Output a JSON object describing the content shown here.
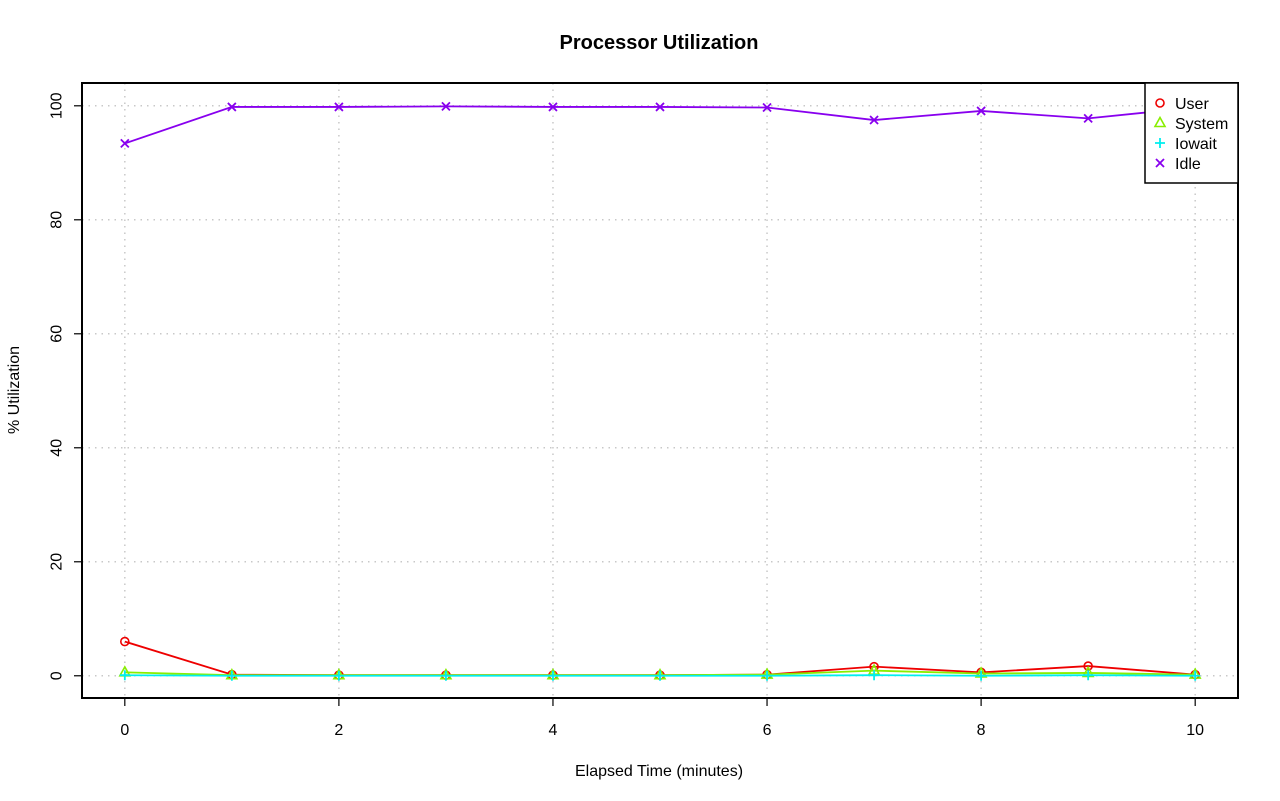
{
  "chart_data": {
    "type": "line",
    "title": "Processor Utilization",
    "xlabel": "Elapsed Time (minutes)",
    "ylabel": "% Utilization",
    "xlim": [
      -0.4,
      10.4
    ],
    "ylim": [
      -3.9,
      104.0
    ],
    "x_ticks": [
      0,
      2,
      4,
      6,
      8,
      10
    ],
    "y_ticks": [
      0,
      20,
      40,
      60,
      80,
      100
    ],
    "grid": true,
    "legend_position": "top-right",
    "x": [
      0,
      1,
      2,
      3,
      4,
      5,
      6,
      7,
      8,
      9,
      10
    ],
    "series": [
      {
        "name": "User",
        "color": "#ee0000",
        "marker": "circle",
        "values": [
          6.0,
          0.2,
          0.1,
          0.1,
          0.1,
          0.1,
          0.2,
          1.6,
          0.6,
          1.7,
          0.2
        ]
      },
      {
        "name": "System",
        "color": "#88ee00",
        "marker": "triangle",
        "values": [
          0.6,
          0.1,
          0.1,
          0.1,
          0.1,
          0.1,
          0.2,
          0.9,
          0.4,
          0.5,
          0.2
        ]
      },
      {
        "name": "Iowait",
        "color": "#00eeee",
        "marker": "plus",
        "values": [
          0.1,
          0.0,
          0.0,
          0.0,
          0.0,
          0.0,
          0.0,
          0.1,
          0.0,
          0.1,
          0.0
        ]
      },
      {
        "name": "Idle",
        "color": "#8800ee",
        "marker": "cross",
        "values": [
          93.4,
          99.8,
          99.8,
          99.9,
          99.8,
          99.8,
          99.7,
          97.5,
          99.1,
          97.8,
          99.7
        ]
      }
    ]
  }
}
